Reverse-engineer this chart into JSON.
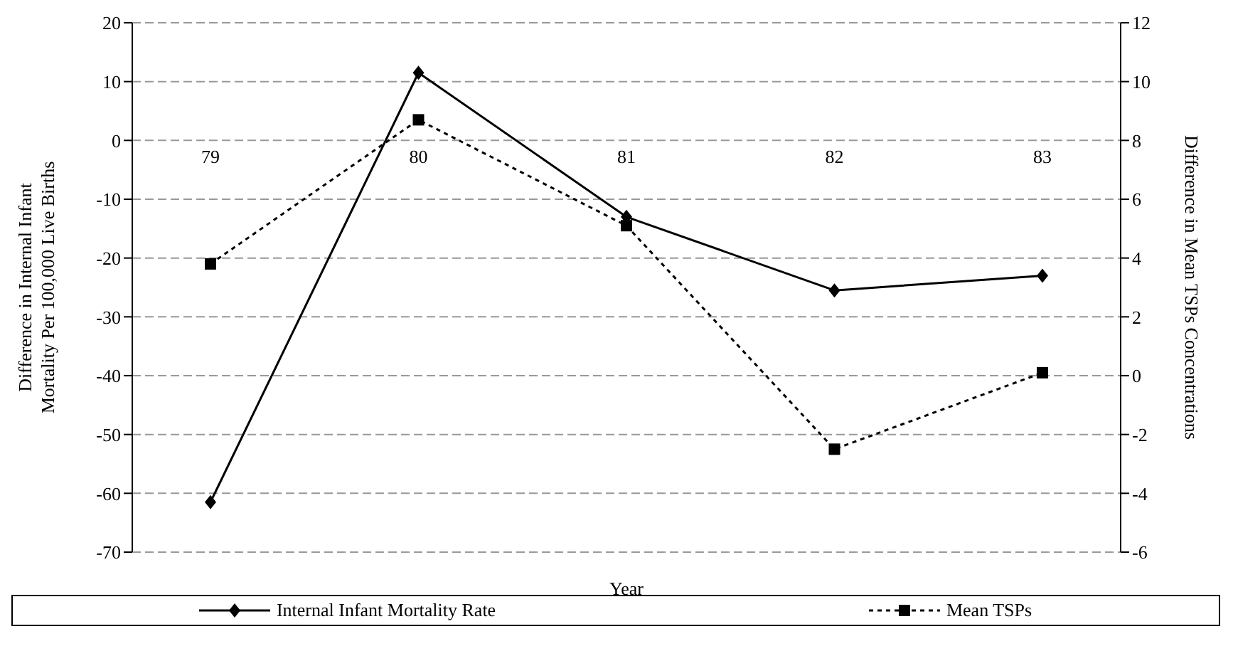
{
  "chart_data": {
    "type": "line",
    "categories": [
      "79",
      "80",
      "81",
      "82",
      "83"
    ],
    "xlabel": "Year",
    "ylabel": "Difference in Internal Infant Mortality Per 100,000 Live Births",
    "y2label": "Difference in Mean TSPs Concentrations",
    "series": [
      {
        "name": "Internal Infant Mortality Rate",
        "color": "#000000",
        "values": [
          -61.5,
          11.5,
          -13,
          -25.5,
          -23
        ],
        "marker": "diamond",
        "line_style": "solid"
      },
      {
        "name": "Mean TSPs",
        "color": "#000000",
        "values": [
          3.8,
          8.7,
          5.1,
          -2.5,
          0.1
        ],
        "marker": "square",
        "line_style": "dotted",
        "axis": "y2"
      }
    ],
    "ylim": [
      -70,
      20
    ],
    "yticks": [
      -70,
      -60,
      -50,
      -40,
      -30,
      -20,
      -10,
      0,
      10,
      20
    ],
    "y2lim": [
      -6,
      12
    ],
    "y2ticks": [
      -6,
      -4,
      -2,
      0,
      2,
      4,
      6,
      8,
      10,
      12
    ],
    "grid": "y",
    "legend": "bottom"
  }
}
